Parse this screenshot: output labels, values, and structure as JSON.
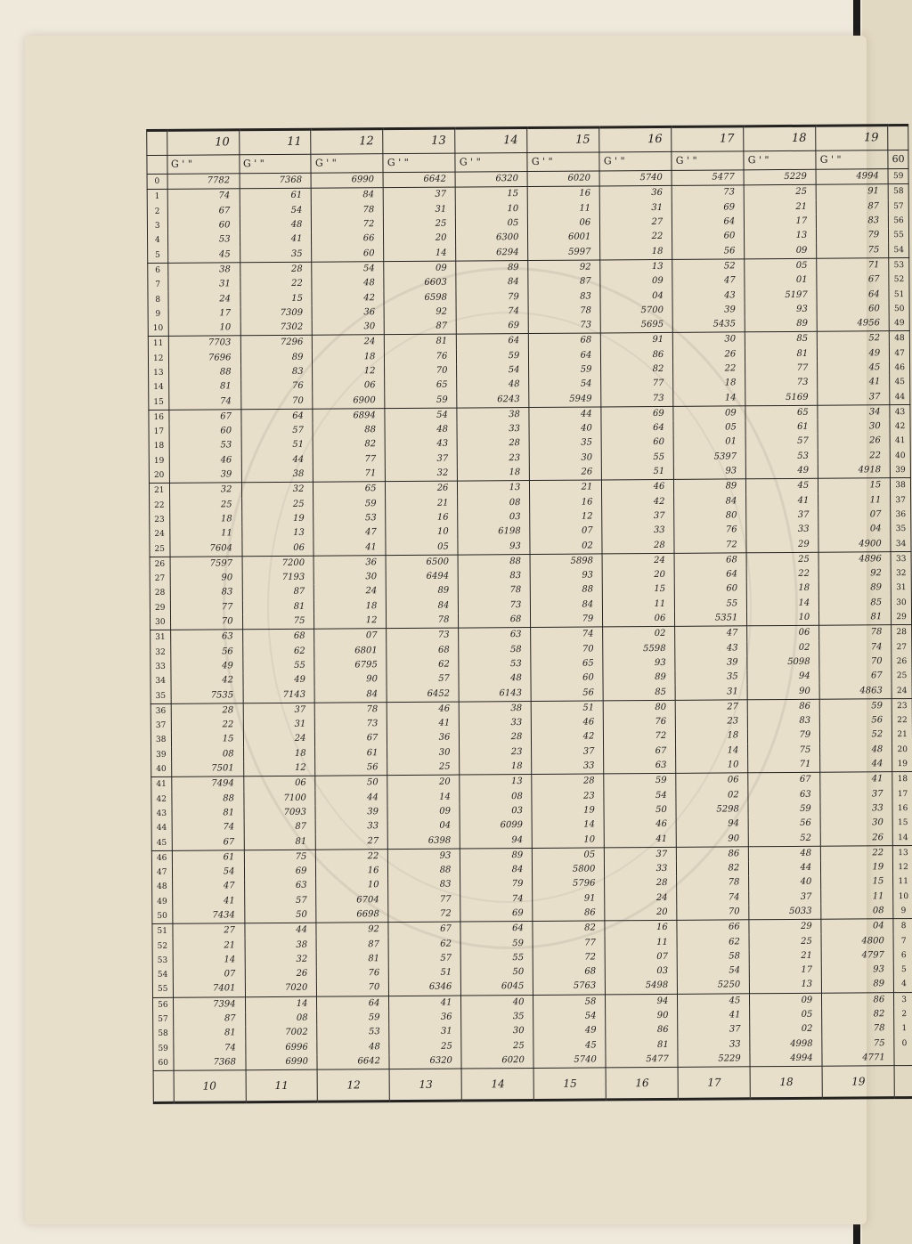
{
  "table": {
    "degrees": [
      "10",
      "11",
      "12",
      "13",
      "14",
      "15",
      "16",
      "17",
      "18",
      "19"
    ],
    "unit_header": "G ' \"",
    "footer_degrees": [
      "10",
      "11",
      "12",
      "13",
      "14",
      "15",
      "16",
      "17",
      "18",
      "19"
    ],
    "columns": [
      [
        "7782",
        "74",
        "67",
        "60",
        "53",
        "45",
        "38",
        "31",
        "24",
        "17",
        "10",
        "7703",
        "7696",
        "88",
        "81",
        "74",
        "67",
        "60",
        "53",
        "46",
        "39",
        "32",
        "25",
        "18",
        "11",
        "7604",
        "7597",
        "90",
        "83",
        "77",
        "70",
        "63",
        "56",
        "49",
        "42",
        "7535",
        "28",
        "22",
        "15",
        "08",
        "7501",
        "7494",
        "88",
        "81",
        "74",
        "67",
        "61",
        "54",
        "47",
        "41",
        "7434",
        "27",
        "21",
        "14",
        "07",
        "7401",
        "7394",
        "87",
        "81",
        "74",
        "7368"
      ],
      [
        "7368",
        "61",
        "54",
        "48",
        "41",
        "35",
        "28",
        "22",
        "15",
        "7309",
        "7302",
        "7296",
        "89",
        "83",
        "76",
        "70",
        "64",
        "57",
        "51",
        "44",
        "38",
        "32",
        "25",
        "19",
        "13",
        "06",
        "7200",
        "7193",
        "87",
        "81",
        "75",
        "68",
        "62",
        "55",
        "49",
        "7143",
        "37",
        "31",
        "24",
        "18",
        "12",
        "06",
        "7100",
        "7093",
        "87",
        "81",
        "75",
        "69",
        "63",
        "57",
        "50",
        "44",
        "38",
        "32",
        "26",
        "7020",
        "14",
        "08",
        "7002",
        "6996",
        "6990"
      ],
      [
        "6990",
        "84",
        "78",
        "72",
        "66",
        "60",
        "54",
        "48",
        "42",
        "36",
        "30",
        "24",
        "18",
        "12",
        "06",
        "6900",
        "6894",
        "88",
        "82",
        "77",
        "71",
        "65",
        "59",
        "53",
        "47",
        "41",
        "36",
        "30",
        "24",
        "18",
        "12",
        "07",
        "6801",
        "6795",
        "90",
        "84",
        "78",
        "73",
        "67",
        "61",
        "56",
        "50",
        "44",
        "39",
        "33",
        "27",
        "22",
        "16",
        "10",
        "6704",
        "6698",
        "92",
        "87",
        "81",
        "76",
        "70",
        "64",
        "59",
        "53",
        "48",
        "6642"
      ],
      [
        "6642",
        "37",
        "31",
        "25",
        "20",
        "14",
        "09",
        "6603",
        "6598",
        "92",
        "87",
        "81",
        "76",
        "70",
        "65",
        "59",
        "54",
        "48",
        "43",
        "37",
        "32",
        "26",
        "21",
        "16",
        "10",
        "05",
        "6500",
        "6494",
        "89",
        "84",
        "78",
        "73",
        "68",
        "62",
        "57",
        "6452",
        "46",
        "41",
        "36",
        "30",
        "25",
        "20",
        "14",
        "09",
        "04",
        "6398",
        "93",
        "88",
        "83",
        "77",
        "72",
        "67",
        "62",
        "57",
        "51",
        "6346",
        "41",
        "36",
        "31",
        "25",
        "6320"
      ],
      [
        "6320",
        "15",
        "10",
        "05",
        "6300",
        "6294",
        "89",
        "84",
        "79",
        "74",
        "69",
        "64",
        "59",
        "54",
        "48",
        "6243",
        "38",
        "33",
        "28",
        "23",
        "18",
        "13",
        "08",
        "03",
        "6198",
        "93",
        "88",
        "83",
        "78",
        "73",
        "68",
        "63",
        "58",
        "53",
        "48",
        "6143",
        "38",
        "33",
        "28",
        "23",
        "18",
        "13",
        "08",
        "03",
        "6099",
        "94",
        "89",
        "84",
        "79",
        "74",
        "69",
        "64",
        "59",
        "55",
        "50",
        "6045",
        "40",
        "35",
        "30",
        "25",
        "6020"
      ],
      [
        "6020",
        "16",
        "11",
        "06",
        "6001",
        "5997",
        "92",
        "87",
        "83",
        "78",
        "73",
        "68",
        "64",
        "59",
        "54",
        "5949",
        "44",
        "40",
        "35",
        "30",
        "26",
        "21",
        "16",
        "12",
        "07",
        "02",
        "5898",
        "93",
        "88",
        "84",
        "79",
        "74",
        "70",
        "65",
        "60",
        "56",
        "51",
        "46",
        "42",
        "37",
        "33",
        "28",
        "23",
        "19",
        "14",
        "10",
        "05",
        "5800",
        "5796",
        "91",
        "86",
        "82",
        "77",
        "72",
        "68",
        "5763",
        "58",
        "54",
        "49",
        "45",
        "5740"
      ],
      [
        "5740",
        "36",
        "31",
        "27",
        "22",
        "18",
        "13",
        "09",
        "04",
        "5700",
        "5695",
        "91",
        "86",
        "82",
        "77",
        "73",
        "69",
        "64",
        "60",
        "55",
        "51",
        "46",
        "42",
        "37",
        "33",
        "28",
        "24",
        "20",
        "15",
        "11",
        "06",
        "02",
        "5598",
        "93",
        "89",
        "85",
        "80",
        "76",
        "72",
        "67",
        "63",
        "59",
        "54",
        "50",
        "46",
        "41",
        "37",
        "33",
        "28",
        "24",
        "20",
        "16",
        "11",
        "07",
        "03",
        "5498",
        "94",
        "90",
        "86",
        "81",
        "5477"
      ],
      [
        "5477",
        "73",
        "69",
        "64",
        "60",
        "56",
        "52",
        "47",
        "43",
        "39",
        "5435",
        "30",
        "26",
        "22",
        "18",
        "14",
        "09",
        "05",
        "01",
        "5397",
        "93",
        "89",
        "84",
        "80",
        "76",
        "72",
        "68",
        "64",
        "60",
        "55",
        "5351",
        "47",
        "43",
        "39",
        "35",
        "31",
        "27",
        "23",
        "18",
        "14",
        "10",
        "06",
        "02",
        "5298",
        "94",
        "90",
        "86",
        "82",
        "78",
        "74",
        "70",
        "66",
        "62",
        "58",
        "54",
        "5250",
        "45",
        "41",
        "37",
        "33",
        "5229"
      ],
      [
        "5229",
        "25",
        "21",
        "17",
        "13",
        "09",
        "05",
        "01",
        "5197",
        "93",
        "89",
        "85",
        "81",
        "77",
        "73",
        "5169",
        "65",
        "61",
        "57",
        "53",
        "49",
        "45",
        "41",
        "37",
        "33",
        "29",
        "25",
        "22",
        "18",
        "14",
        "10",
        "06",
        "02",
        "5098",
        "94",
        "90",
        "86",
        "83",
        "79",
        "75",
        "71",
        "67",
        "63",
        "59",
        "56",
        "52",
        "48",
        "44",
        "40",
        "37",
        "5033",
        "29",
        "25",
        "21",
        "17",
        "13",
        "09",
        "05",
        "02",
        "4998",
        "4994"
      ],
      [
        "4994",
        "91",
        "87",
        "83",
        "79",
        "75",
        "71",
        "67",
        "64",
        "60",
        "4956",
        "52",
        "49",
        "45",
        "41",
        "37",
        "34",
        "30",
        "26",
        "22",
        "4918",
        "15",
        "11",
        "07",
        "04",
        "4900",
        "4896",
        "92",
        "89",
        "85",
        "81",
        "78",
        "74",
        "70",
        "67",
        "4863",
        "59",
        "56",
        "52",
        "48",
        "44",
        "41",
        "37",
        "33",
        "30",
        "26",
        "22",
        "19",
        "15",
        "11",
        "08",
        "04",
        "4800",
        "4797",
        "93",
        "89",
        "86",
        "82",
        "78",
        "75",
        "4771"
      ]
    ]
  },
  "colors": {
    "paper": "#e8dfcb",
    "ink": "#222222"
  }
}
